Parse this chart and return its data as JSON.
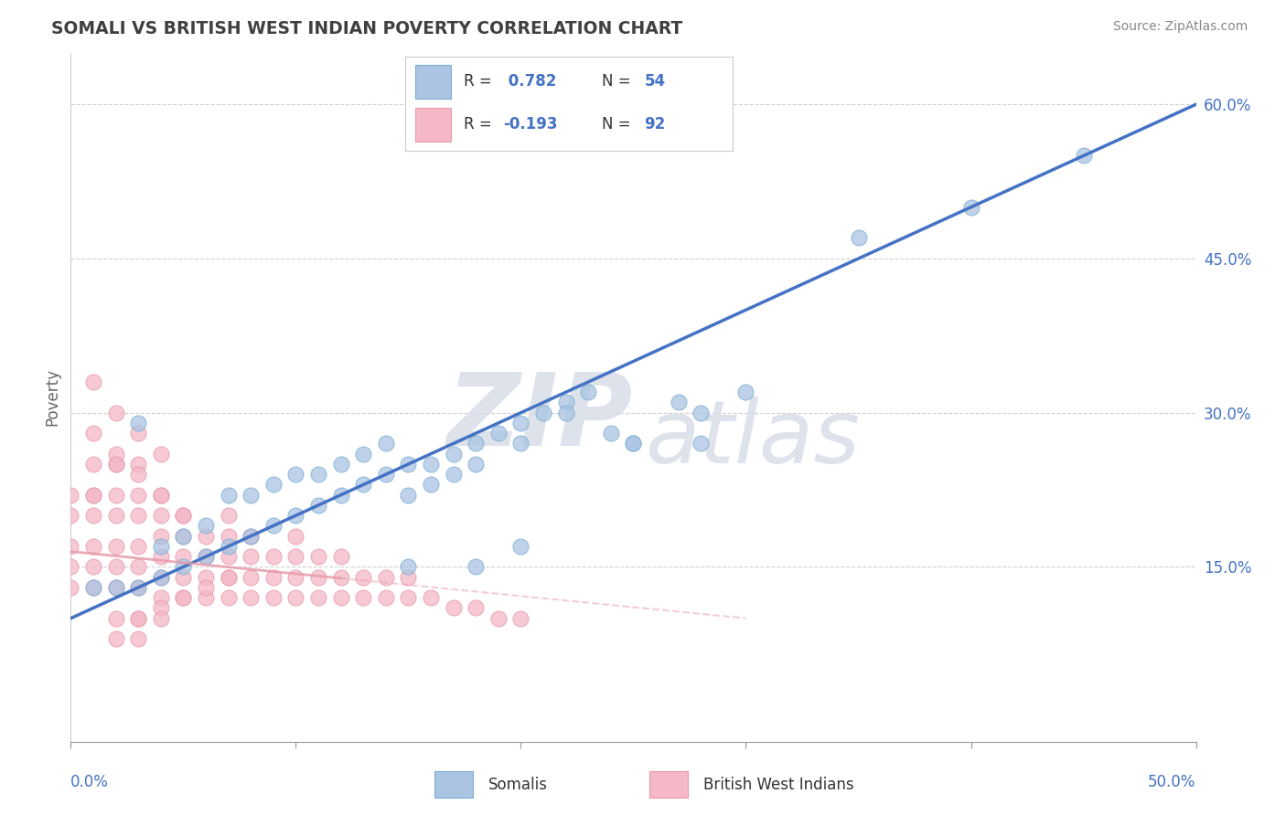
{
  "title": "SOMALI VS BRITISH WEST INDIAN POVERTY CORRELATION CHART",
  "source": "Source: ZipAtlas.com",
  "ylabel": "Poverty",
  "ylabel_right_ticks": [
    "60.0%",
    "45.0%",
    "30.0%",
    "15.0%"
  ],
  "ylabel_right_values": [
    0.6,
    0.45,
    0.3,
    0.15
  ],
  "xmin": 0.0,
  "xmax": 0.5,
  "ymin": -0.02,
  "ymax": 0.65,
  "somali_R": 0.782,
  "somali_N": 54,
  "bwi_R": -0.193,
  "bwi_N": 92,
  "somali_color": "#aac4e2",
  "somali_edge_color": "#7bafd4",
  "somali_line_color": "#4472c4",
  "bwi_color": "#f4b8c8",
  "bwi_edge_color": "#e89aaa",
  "bwi_line_color": "#e89aaa",
  "watermark_zip": "ZIP",
  "watermark_atlas": "atlas",
  "background_color": "#ffffff",
  "grid_color": "#d0d0d0",
  "somali_line_x0": 0.0,
  "somali_line_y0": 0.1,
  "somali_line_x1": 0.5,
  "somali_line_y1": 0.6,
  "bwi_line_x0": 0.0,
  "bwi_line_y0": 0.165,
  "bwi_line_x1": 0.3,
  "bwi_line_y1": 0.1,
  "bwi_line_solid_x1": 0.12,
  "somali_scatter_x": [
    0.01,
    0.02,
    0.03,
    0.04,
    0.05,
    0.06,
    0.07,
    0.08,
    0.09,
    0.1,
    0.11,
    0.12,
    0.13,
    0.14,
    0.15,
    0.16,
    0.17,
    0.18,
    0.19,
    0.2,
    0.21,
    0.22,
    0.23,
    0.24,
    0.25,
    0.27,
    0.28,
    0.3,
    0.35,
    0.4,
    0.45,
    0.07,
    0.08,
    0.09,
    0.1,
    0.11,
    0.12,
    0.13,
    0.14,
    0.15,
    0.16,
    0.17,
    0.18,
    0.2,
    0.22,
    0.25,
    0.04,
    0.05,
    0.06,
    0.2,
    0.28,
    0.03,
    0.15,
    0.18
  ],
  "somali_scatter_y": [
    0.13,
    0.13,
    0.13,
    0.14,
    0.15,
    0.16,
    0.17,
    0.18,
    0.19,
    0.2,
    0.21,
    0.22,
    0.23,
    0.24,
    0.25,
    0.25,
    0.26,
    0.27,
    0.28,
    0.29,
    0.3,
    0.31,
    0.32,
    0.28,
    0.27,
    0.31,
    0.27,
    0.32,
    0.47,
    0.5,
    0.55,
    0.22,
    0.22,
    0.23,
    0.24,
    0.24,
    0.25,
    0.26,
    0.27,
    0.22,
    0.23,
    0.24,
    0.25,
    0.27,
    0.3,
    0.27,
    0.17,
    0.18,
    0.19,
    0.17,
    0.3,
    0.29,
    0.15,
    0.15
  ],
  "bwi_scatter_x": [
    0.0,
    0.0,
    0.0,
    0.0,
    0.01,
    0.01,
    0.01,
    0.01,
    0.01,
    0.02,
    0.02,
    0.02,
    0.02,
    0.02,
    0.02,
    0.03,
    0.03,
    0.03,
    0.03,
    0.03,
    0.03,
    0.04,
    0.04,
    0.04,
    0.04,
    0.04,
    0.04,
    0.05,
    0.05,
    0.05,
    0.05,
    0.05,
    0.06,
    0.06,
    0.06,
    0.06,
    0.07,
    0.07,
    0.07,
    0.07,
    0.07,
    0.08,
    0.08,
    0.08,
    0.08,
    0.09,
    0.09,
    0.09,
    0.1,
    0.1,
    0.1,
    0.1,
    0.11,
    0.11,
    0.11,
    0.12,
    0.12,
    0.12,
    0.13,
    0.13,
    0.14,
    0.14,
    0.15,
    0.15,
    0.16,
    0.17,
    0.18,
    0.19,
    0.2,
    0.01,
    0.02,
    0.03,
    0.04,
    0.05,
    0.01,
    0.02,
    0.03,
    0.04,
    0.02,
    0.03,
    0.04,
    0.05,
    0.06,
    0.07,
    0.0,
    0.01,
    0.01,
    0.02,
    0.03,
    0.04,
    0.02,
    0.03
  ],
  "bwi_scatter_y": [
    0.13,
    0.15,
    0.17,
    0.2,
    0.13,
    0.15,
    0.17,
    0.2,
    0.22,
    0.13,
    0.15,
    0.17,
    0.2,
    0.22,
    0.25,
    0.13,
    0.15,
    0.17,
    0.2,
    0.22,
    0.25,
    0.12,
    0.14,
    0.16,
    0.18,
    0.2,
    0.22,
    0.12,
    0.14,
    0.16,
    0.18,
    0.2,
    0.12,
    0.14,
    0.16,
    0.18,
    0.12,
    0.14,
    0.16,
    0.18,
    0.2,
    0.12,
    0.14,
    0.16,
    0.18,
    0.12,
    0.14,
    0.16,
    0.12,
    0.14,
    0.16,
    0.18,
    0.12,
    0.14,
    0.16,
    0.12,
    0.14,
    0.16,
    0.12,
    0.14,
    0.12,
    0.14,
    0.12,
    0.14,
    0.12,
    0.11,
    0.11,
    0.1,
    0.1,
    0.28,
    0.26,
    0.24,
    0.22,
    0.2,
    0.33,
    0.3,
    0.28,
    0.26,
    0.1,
    0.1,
    0.11,
    0.12,
    0.13,
    0.14,
    0.22,
    0.22,
    0.25,
    0.25,
    0.1,
    0.1,
    0.08,
    0.08
  ]
}
